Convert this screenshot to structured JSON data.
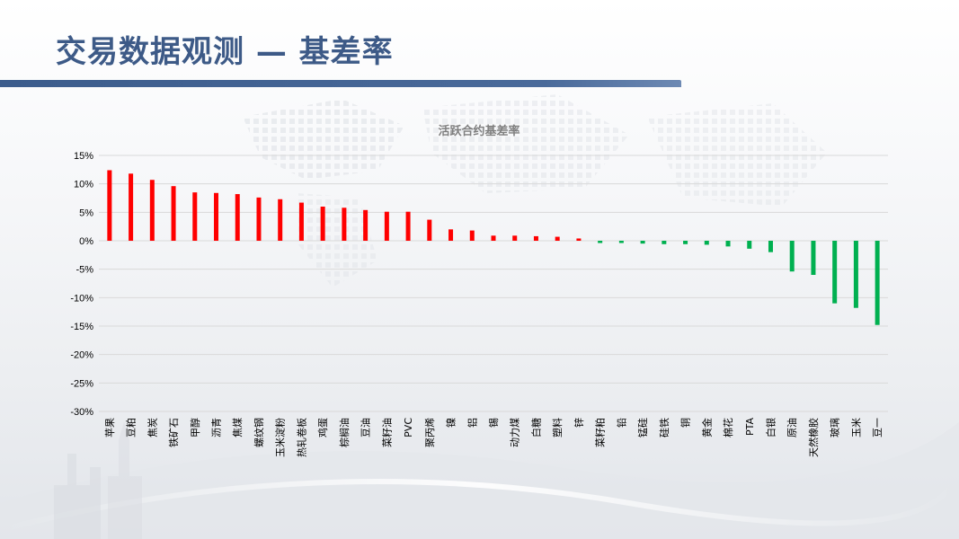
{
  "slide": {
    "title": "交易数据观测 — 基差率"
  },
  "colors": {
    "positive": "#ff0000",
    "negative": "#00b050",
    "title": "#3d5a87",
    "grid": "#d9d9d9",
    "text": "#000000",
    "chart_title": "#7f7f7f"
  },
  "chart_data": {
    "type": "bar",
    "title": "活跃合约基差率",
    "xlabel": "",
    "ylabel": "",
    "ylim": [
      -30,
      15
    ],
    "yticks": [
      15,
      10,
      5,
      0,
      -5,
      -10,
      -15,
      -20,
      -25,
      -30
    ],
    "ytick_labels": [
      "15%",
      "10%",
      "5%",
      "0%",
      "-5%",
      "-10%",
      "-15%",
      "-20%",
      "-25%",
      "-30%"
    ],
    "grid": true,
    "legend": "none",
    "categories": [
      "苹果",
      "豆粕",
      "焦炭",
      "铁矿石",
      "甲醇",
      "沥青",
      "焦煤",
      "螺纹钢",
      "玉米淀粉",
      "热轧卷板",
      "鸡蛋",
      "棕榈油",
      "豆油",
      "菜籽油",
      "PVC",
      "聚丙烯",
      "镍",
      "铝",
      "锡",
      "动力煤",
      "白糖",
      "塑料",
      "锌",
      "菜籽粕",
      "铅",
      "锰硅",
      "硅铁",
      "铜",
      "黄金",
      "棉花",
      "PTA",
      "白银",
      "原油",
      "天然橡胶",
      "玻璃",
      "玉米",
      "豆一"
    ],
    "values": [
      12.4,
      11.8,
      10.7,
      9.6,
      8.5,
      8.4,
      8.2,
      7.6,
      7.3,
      6.7,
      6.0,
      5.8,
      5.4,
      5.1,
      5.1,
      3.7,
      2.0,
      1.8,
      0.9,
      0.9,
      0.8,
      0.7,
      0.4,
      -0.4,
      -0.4,
      -0.5,
      -0.6,
      -0.6,
      -0.7,
      -1.0,
      -1.4,
      -2.0,
      -5.4,
      -6.0,
      -11.0,
      -11.8,
      -14.8
    ]
  }
}
